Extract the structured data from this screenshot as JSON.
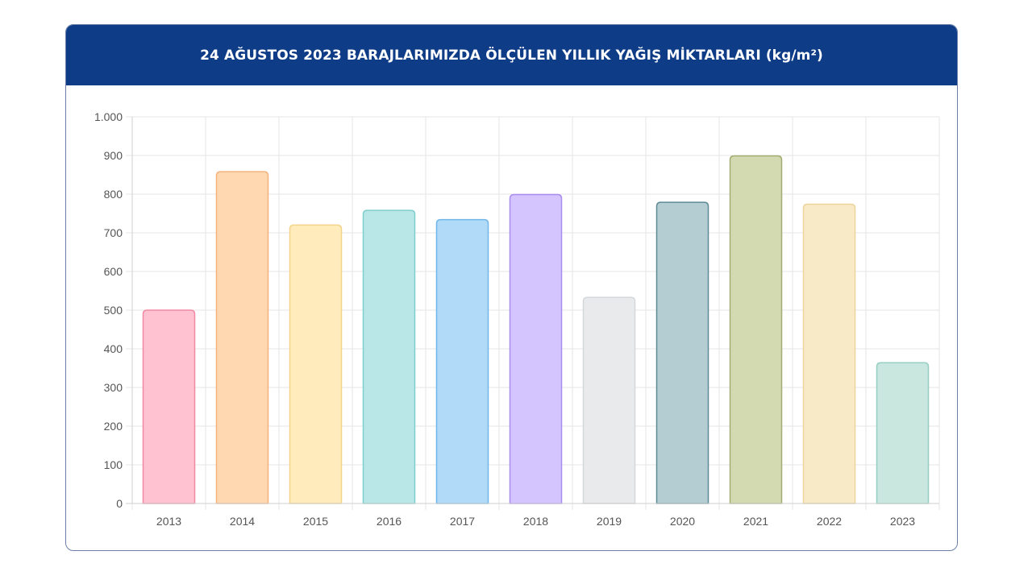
{
  "header": {
    "title": "24 AĞUSTOS 2023 BARAJLARIMIZDA ÖLÇÜLEN YILLIK YAĞIŞ MİKTARLARI (kg/m²)"
  },
  "chart_data": {
    "type": "bar",
    "title": "24 AĞUSTOS 2023 BARAJLARIMIZDA ÖLÇÜLEN YILLIK YAĞIŞ MİKTARLARI (kg/m²)",
    "xlabel": "",
    "ylabel": "",
    "categories": [
      "2013",
      "2014",
      "2015",
      "2016",
      "2017",
      "2018",
      "2019",
      "2020",
      "2021",
      "2022",
      "2023"
    ],
    "values": [
      500,
      858,
      720,
      758,
      734,
      799,
      533,
      779,
      899,
      774,
      364
    ],
    "ylim": [
      0,
      1000
    ],
    "y_ticks": [
      0,
      100,
      200,
      300,
      400,
      500,
      600,
      700,
      800,
      900,
      1000
    ],
    "y_tick_labels": [
      "0",
      "100",
      "200",
      "300",
      "400",
      "500",
      "600",
      "700",
      "800",
      "900",
      "1.000"
    ],
    "grid": true,
    "legend": "none",
    "bar_fill_colors": [
      "#ffc2d1",
      "#ffd8b1",
      "#ffebbb",
      "#b9e6e6",
      "#b1d9f8",
      "#d5c5fe",
      "#e8eaeb",
      "#b4cdd3",
      "#d3d9b1",
      "#f8e9c7",
      "#c9e6df"
    ],
    "bar_border_colors": [
      "#f08aa3",
      "#f4b27c",
      "#f3d489",
      "#7dcfcd",
      "#6fb6ea",
      "#a98cf0",
      "#d4d8da",
      "#5d8a94",
      "#a3ad72",
      "#ecd49a",
      "#96cfc1"
    ]
  }
}
